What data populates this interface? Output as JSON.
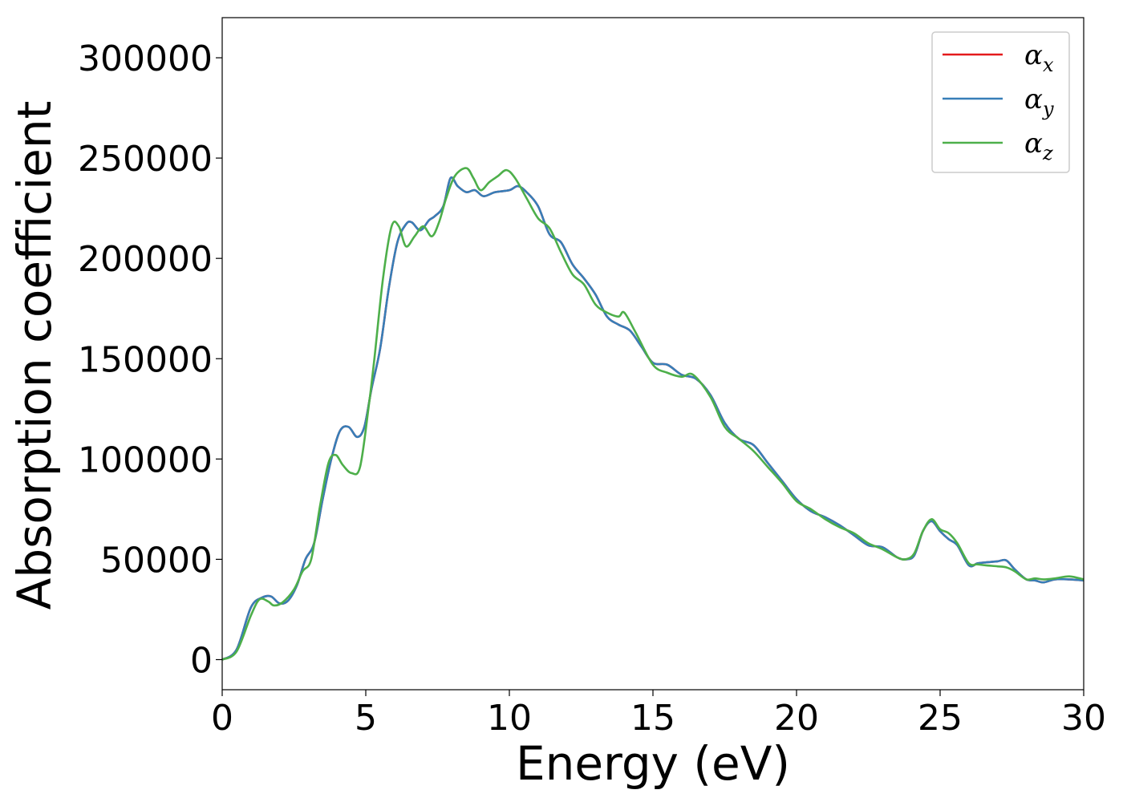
{
  "chart_data": {
    "type": "line",
    "title": "",
    "xlabel": "Energy (eV)",
    "ylabel": "Absorption coefficient",
    "xlim": [
      0,
      30
    ],
    "ylim": [
      -15000,
      320000
    ],
    "x_ticks": [
      "0",
      "5",
      "10",
      "15",
      "20",
      "25",
      "30"
    ],
    "y_ticks": [
      "0",
      "50000",
      "100000",
      "150000",
      "200000",
      "250000",
      "300000"
    ],
    "grid": false,
    "legend_position": "top-right",
    "series": [
      {
        "name": "αx",
        "color": "#e41a1c",
        "x": [
          0,
          0.5,
          1.0,
          1.4,
          1.7,
          2.0,
          2.3,
          2.6,
          2.9,
          3.2,
          3.5,
          3.8,
          4.1,
          4.4,
          4.7,
          4.95,
          5.2,
          5.5,
          5.8,
          6.1,
          6.4,
          6.6,
          6.9,
          7.2,
          7.4,
          7.7,
          7.95,
          8.2,
          8.5,
          8.8,
          9.1,
          9.5,
          10.0,
          10.3,
          10.6,
          11.0,
          11.4,
          11.8,
          12.2,
          12.6,
          13.0,
          13.4,
          13.8,
          14.2,
          14.6,
          15.0,
          15.5,
          16.0,
          16.5,
          17.0,
          17.5,
          18.0,
          18.5,
          19.0,
          19.5,
          20.0,
          20.5,
          21.0,
          21.5,
          22.0,
          22.5,
          23.0,
          23.5,
          23.8,
          24.1,
          24.4,
          24.7,
          25.0,
          25.3,
          25.6,
          26.0,
          26.3,
          26.6,
          27.0,
          27.3,
          27.6,
          28.0,
          28.3,
          28.6,
          29.0,
          29.5,
          30.0
        ],
        "y": [
          0,
          5000,
          26000,
          31000,
          31500,
          28000,
          29500,
          37000,
          50000,
          58000,
          80000,
          100000,
          114000,
          116000,
          111000,
          116000,
          135000,
          155000,
          185000,
          208000,
          217000,
          218000,
          214000,
          219000,
          221000,
          226000,
          240000,
          236000,
          233000,
          234000,
          231000,
          233000,
          234000,
          236000,
          233000,
          226000,
          212000,
          208000,
          197000,
          190000,
          182000,
          171000,
          167000,
          164000,
          156000,
          148000,
          147000,
          142000,
          140000,
          132000,
          118000,
          110000,
          107000,
          98000,
          89000,
          80000,
          74000,
          71000,
          67000,
          62000,
          57000,
          56000,
          51000,
          50000,
          52000,
          64000,
          69000,
          64000,
          60000,
          57000,
          47000,
          48000,
          48500,
          49000,
          49500,
          45000,
          40000,
          39500,
          38500,
          40000,
          40000,
          39500
        ]
      },
      {
        "name": "αy",
        "color": "#377eb8",
        "x": [
          0,
          0.5,
          1.0,
          1.4,
          1.7,
          2.0,
          2.3,
          2.6,
          2.9,
          3.2,
          3.5,
          3.8,
          4.1,
          4.4,
          4.7,
          4.95,
          5.2,
          5.5,
          5.8,
          6.1,
          6.4,
          6.6,
          6.9,
          7.2,
          7.4,
          7.7,
          7.95,
          8.2,
          8.5,
          8.8,
          9.1,
          9.5,
          10.0,
          10.3,
          10.6,
          11.0,
          11.4,
          11.8,
          12.2,
          12.6,
          13.0,
          13.4,
          13.8,
          14.2,
          14.6,
          15.0,
          15.5,
          16.0,
          16.5,
          17.0,
          17.5,
          18.0,
          18.5,
          19.0,
          19.5,
          20.0,
          20.5,
          21.0,
          21.5,
          22.0,
          22.5,
          23.0,
          23.5,
          23.8,
          24.1,
          24.4,
          24.7,
          25.0,
          25.3,
          25.6,
          26.0,
          26.3,
          26.6,
          27.0,
          27.3,
          27.6,
          28.0,
          28.3,
          28.6,
          29.0,
          29.5,
          30.0
        ],
        "y": [
          0,
          5000,
          26000,
          31000,
          31500,
          28000,
          29500,
          37000,
          50000,
          58000,
          80000,
          100000,
          114000,
          116000,
          111000,
          116000,
          135000,
          155000,
          185000,
          208000,
          217000,
          218000,
          214000,
          219000,
          221000,
          226000,
          240000,
          236000,
          233000,
          234000,
          231000,
          233000,
          234000,
          236000,
          233000,
          226000,
          212000,
          208000,
          197000,
          190000,
          182000,
          171000,
          167000,
          164000,
          156000,
          148000,
          147000,
          142000,
          140000,
          132000,
          118000,
          110000,
          107000,
          98000,
          89000,
          80000,
          74000,
          71000,
          67000,
          62000,
          57000,
          56000,
          51000,
          50000,
          52000,
          64000,
          69000,
          64000,
          60000,
          57000,
          47000,
          48000,
          48500,
          49000,
          49500,
          45000,
          40000,
          39500,
          38500,
          40000,
          40000,
          39500
        ]
      },
      {
        "name": "αz",
        "color": "#4daf4a",
        "x": [
          0,
          0.5,
          1.0,
          1.3,
          1.6,
          1.8,
          2.1,
          2.5,
          2.8,
          3.1,
          3.4,
          3.7,
          3.95,
          4.2,
          4.5,
          4.8,
          5.1,
          5.3,
          5.6,
          5.9,
          6.15,
          6.4,
          6.7,
          7.0,
          7.3,
          7.55,
          7.8,
          8.1,
          8.5,
          8.75,
          9.0,
          9.3,
          9.6,
          9.9,
          10.2,
          10.6,
          11.0,
          11.4,
          11.8,
          12.2,
          12.6,
          13.0,
          13.4,
          13.8,
          14.0,
          14.4,
          15.0,
          15.5,
          16.0,
          16.4,
          17.0,
          17.5,
          18.0,
          18.5,
          19.0,
          19.5,
          20.0,
          20.5,
          21.0,
          21.5,
          22.0,
          22.5,
          23.0,
          23.5,
          23.8,
          24.1,
          24.4,
          24.7,
          25.0,
          25.3,
          25.6,
          26.0,
          26.3,
          26.6,
          27.0,
          27.3,
          27.6,
          28.0,
          28.3,
          28.6,
          29.0,
          29.5,
          30.0
        ],
        "y": [
          0,
          4000,
          22000,
          30000,
          29000,
          27000,
          28500,
          35000,
          44000,
          50000,
          76000,
          98000,
          102000,
          97000,
          93000,
          96000,
          126000,
          150000,
          190000,
          216000,
          216000,
          206000,
          211000,
          216000,
          211000,
          218000,
          230000,
          241000,
          245000,
          240000,
          234000,
          238000,
          241000,
          244000,
          240000,
          230000,
          220000,
          215000,
          203000,
          192000,
          187000,
          177000,
          173000,
          171000,
          173000,
          163000,
          147000,
          143000,
          141000,
          142000,
          131000,
          116000,
          110000,
          104000,
          96000,
          88000,
          79000,
          75000,
          70000,
          66000,
          63000,
          58000,
          55000,
          51000,
          50000,
          53000,
          64000,
          70000,
          65000,
          63000,
          58000,
          48000,
          47500,
          47000,
          46500,
          46000,
          44000,
          40000,
          40500,
          40000,
          40500,
          41500,
          40000
        ]
      }
    ]
  }
}
